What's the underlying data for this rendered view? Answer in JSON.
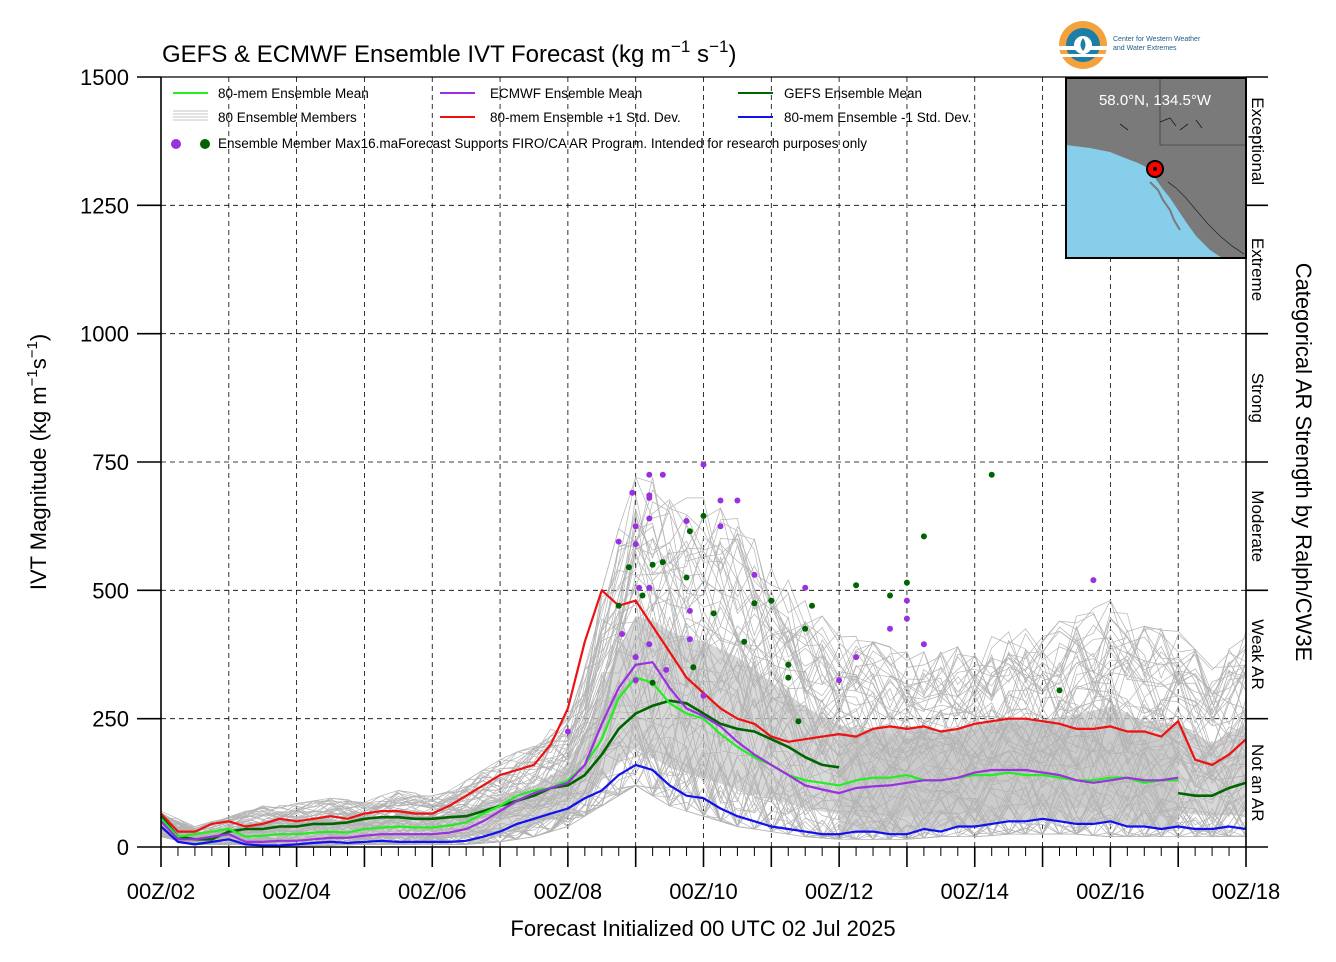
{
  "chart_data": {
    "type": "line",
    "title": "GEFS & ECMWF Ensemble IVT Forecast (kg m",
    "title_sup1": "−1",
    "title_mid": " s",
    "title_sup2": "−1",
    "title_end": ")",
    "xlabel": "Forecast Initialized 00 UTC 02 Jul 2025",
    "ylabel": "IVT Magnitude (kg m",
    "ylabel_sup1": "−1",
    "ylabel_mid": "s",
    "ylabel_sup2": "−1",
    "ylabel_end": ")",
    "right_axis_label": "Categorical AR Strength by Ralph/CW3E",
    "ylim": [
      0,
      1500
    ],
    "xlim_days": [
      2,
      18
    ],
    "y_ticks": [
      "0",
      "250",
      "500",
      "750",
      "1000",
      "1250",
      "1500"
    ],
    "y_tick_values": [
      0,
      250,
      500,
      750,
      1000,
      1250,
      1500
    ],
    "x_ticks": [
      "00Z/02",
      "00Z/04",
      "00Z/06",
      "00Z/08",
      "00Z/10",
      "00Z/12",
      "00Z/14",
      "00Z/16",
      "00Z/18"
    ],
    "x_tick_values": [
      2,
      4,
      6,
      8,
      10,
      12,
      14,
      16,
      18
    ],
    "grid": true,
    "categories": [
      {
        "label": "Not an AR",
        "range": [
          0,
          250
        ]
      },
      {
        "label": "Weak AR",
        "range": [
          250,
          500
        ]
      },
      {
        "label": "Moderate",
        "range": [
          500,
          750
        ]
      },
      {
        "label": "Strong",
        "range": [
          750,
          1000
        ]
      },
      {
        "label": "Extreme",
        "range": [
          1000,
          1250
        ]
      },
      {
        "label": "Exceptional",
        "range": [
          1250,
          1500
        ]
      }
    ],
    "legend": {
      "placement": "top-left",
      "entries": [
        {
          "label": "80-mem Ensemble Mean",
          "color": "#22ee22"
        },
        {
          "label": "ECMWF Ensemble Mean",
          "color": "#9b30e0"
        },
        {
          "label": "GEFS Ensemble Mean",
          "color": "#006400"
        },
        {
          "label": "80 Ensemble Members",
          "color": "#b3b3b3"
        },
        {
          "label": "80-mem Ensemble +1 Std. Dev.",
          "color": "#ee1111"
        },
        {
          "label": "80-mem Ensemble -1 Std. Dev.",
          "color": "#1111ee"
        }
      ],
      "max_label": "Ensemble Member Max",
      "note": "16.maForecast Supports FIRO/CA AR Program. Intended for research purposes only"
    },
    "inset_location": "58.0°N, 134.5°W",
    "logo_text": [
      "Center for Western Weather",
      "and Water Extremes"
    ],
    "series": [
      {
        "name": "80-mem Ensemble +1 Std. Dev.",
        "color": "#ee1111",
        "x": [
          2.0,
          2.25,
          2.5,
          2.75,
          3.0,
          3.25,
          3.5,
          3.75,
          4.0,
          4.25,
          4.5,
          4.75,
          5.0,
          5.25,
          5.5,
          5.75,
          6.0,
          6.25,
          6.5,
          6.75,
          7.0,
          7.25,
          7.5,
          7.75,
          8.0,
          8.25,
          8.5,
          8.75,
          9.0,
          9.25,
          9.5,
          9.75,
          10.0,
          10.25,
          10.5,
          10.75,
          11.0,
          11.25,
          11.5,
          11.75,
          12.0,
          12.25,
          12.5,
          12.75,
          13.0,
          13.25,
          13.5,
          13.75,
          14.0,
          14.25,
          14.5,
          14.75,
          15.0,
          15.25,
          15.5,
          15.75,
          16.0,
          16.25,
          16.5,
          16.75,
          17.0,
          17.25,
          17.5,
          17.75,
          18.0
        ],
        "values": [
          65,
          30,
          30,
          45,
          50,
          40,
          45,
          55,
          50,
          55,
          60,
          55,
          65,
          70,
          70,
          65,
          65,
          80,
          100,
          120,
          140,
          150,
          160,
          200,
          270,
          400,
          500,
          470,
          480,
          430,
          380,
          330,
          300,
          270,
          250,
          240,
          215,
          205,
          210,
          215,
          220,
          215,
          230,
          235,
          230,
          235,
          225,
          230,
          240,
          245,
          250,
          250,
          245,
          240,
          230,
          230,
          235,
          225,
          225,
          215,
          245,
          170,
          160,
          180,
          210
        ]
      },
      {
        "name": "GEFS Ensemble Mean",
        "color": "#006400",
        "x": [
          2.0,
          2.25,
          2.5,
          2.75,
          3.0,
          3.25,
          3.5,
          3.75,
          4.0,
          4.25,
          4.5,
          4.75,
          5.0,
          5.25,
          5.5,
          5.75,
          6.0,
          6.25,
          6.5,
          6.75,
          7.0,
          7.25,
          7.5,
          7.75,
          8.0,
          8.25,
          8.5,
          8.75,
          9.0,
          9.25,
          9.5,
          9.75,
          10.0,
          10.25,
          10.5,
          10.75,
          11.0,
          11.25,
          11.5,
          11.75,
          12.0
        ],
        "values": [
          60,
          20,
          15,
          15,
          30,
          35,
          35,
          40,
          40,
          45,
          45,
          48,
          55,
          58,
          58,
          55,
          55,
          58,
          60,
          70,
          80,
          90,
          100,
          115,
          120,
          140,
          180,
          230,
          260,
          275,
          285,
          280,
          260,
          240,
          230,
          225,
          210,
          195,
          175,
          160,
          155
        ]
      },
      {
        "name": "GEFS Ensemble Mean (late)",
        "color": "#006400",
        "x": [
          17.0,
          17.25,
          17.5,
          17.75,
          18.0
        ],
        "values": [
          105,
          100,
          100,
          115,
          125
        ]
      },
      {
        "name": "80-mem Ensemble Mean",
        "color": "#22ee22",
        "x": [
          2.0,
          2.25,
          2.5,
          2.75,
          3.0,
          3.25,
          3.5,
          3.75,
          4.0,
          4.25,
          4.5,
          4.75,
          5.0,
          5.25,
          5.5,
          5.75,
          6.0,
          6.25,
          6.5,
          6.75,
          7.0,
          7.25,
          7.5,
          7.75,
          8.0,
          8.25,
          8.5,
          8.75,
          9.0,
          9.25,
          9.5,
          9.75,
          10.0,
          10.25,
          10.5,
          10.75,
          11.0,
          11.25,
          11.5,
          11.75,
          12.0,
          12.25,
          12.5,
          12.75,
          13.0,
          13.25,
          13.5,
          13.75,
          14.0,
          14.25,
          14.5,
          14.75,
          15.0,
          15.25,
          15.5,
          15.75,
          16.0,
          16.25,
          16.5,
          16.75,
          17.0
        ],
        "values": [
          55,
          20,
          25,
          30,
          35,
          20,
          22,
          25,
          25,
          28,
          30,
          28,
          35,
          38,
          40,
          38,
          38,
          42,
          48,
          65,
          80,
          100,
          110,
          115,
          130,
          160,
          210,
          290,
          330,
          320,
          280,
          260,
          250,
          220,
          195,
          175,
          160,
          140,
          130,
          125,
          120,
          130,
          135,
          135,
          140,
          130,
          130,
          135,
          140,
          140,
          145,
          140,
          140,
          135,
          130,
          130,
          135,
          135,
          125,
          130,
          130
        ]
      },
      {
        "name": "ECMWF Ensemble Mean",
        "color": "#9b30e0",
        "x": [
          2.0,
          2.25,
          2.5,
          2.75,
          3.0,
          3.25,
          3.5,
          3.75,
          4.0,
          4.25,
          4.5,
          4.75,
          5.0,
          5.25,
          5.5,
          5.75,
          6.0,
          6.25,
          6.5,
          6.75,
          7.0,
          7.25,
          7.5,
          7.75,
          8.0,
          8.25,
          8.5,
          8.75,
          9.0,
          9.25,
          9.5,
          9.75,
          10.0,
          10.25,
          10.5,
          10.75,
          11.0,
          11.25,
          11.5,
          11.75,
          12.0,
          12.25,
          12.5,
          12.75,
          13.0,
          13.25,
          13.5,
          13.75,
          14.0,
          14.25,
          14.5,
          14.75,
          15.0,
          15.25,
          15.5,
          15.75,
          16.0,
          16.25,
          16.5,
          16.75,
          17.0
        ],
        "values": [
          50,
          15,
          15,
          20,
          25,
          10,
          10,
          12,
          12,
          15,
          18,
          18,
          22,
          25,
          25,
          25,
          25,
          28,
          35,
          50,
          70,
          90,
          105,
          115,
          125,
          160,
          240,
          310,
          355,
          360,
          310,
          270,
          255,
          235,
          205,
          180,
          160,
          140,
          120,
          112,
          105,
          115,
          118,
          120,
          125,
          130,
          130,
          135,
          145,
          150,
          150,
          150,
          145,
          140,
          130,
          125,
          130,
          135,
          130,
          130,
          135
        ]
      },
      {
        "name": "80-mem Ensemble -1 Std. Dev.",
        "color": "#1111ee",
        "x": [
          2.0,
          2.25,
          2.5,
          2.75,
          3.0,
          3.25,
          3.5,
          3.75,
          4.0,
          4.25,
          4.5,
          4.75,
          5.0,
          5.25,
          5.5,
          5.75,
          6.0,
          6.25,
          6.5,
          6.75,
          7.0,
          7.25,
          7.5,
          7.75,
          8.0,
          8.25,
          8.5,
          8.75,
          9.0,
          9.25,
          9.5,
          9.75,
          10.0,
          10.25,
          10.5,
          10.75,
          11.0,
          11.25,
          11.5,
          11.75,
          12.0,
          12.25,
          12.5,
          12.75,
          13.0,
          13.25,
          13.5,
          13.75,
          14.0,
          14.25,
          14.5,
          14.75,
          15.0,
          15.25,
          15.5,
          15.75,
          16.0,
          16.25,
          16.5,
          16.75,
          17.0,
          17.25,
          17.5,
          17.75,
          18.0
        ],
        "values": [
          40,
          10,
          5,
          10,
          15,
          5,
          3,
          3,
          5,
          8,
          10,
          8,
          10,
          12,
          10,
          10,
          10,
          10,
          12,
          20,
          30,
          45,
          55,
          65,
          75,
          95,
          110,
          140,
          160,
          150,
          120,
          100,
          95,
          75,
          60,
          50,
          40,
          35,
          30,
          25,
          25,
          30,
          30,
          25,
          25,
          35,
          30,
          40,
          40,
          45,
          50,
          50,
          55,
          50,
          45,
          45,
          50,
          40,
          40,
          35,
          40,
          35,
          35,
          40,
          35
        ]
      }
    ],
    "member_spread": {
      "x": [
        2.0,
        2.5,
        3.0,
        3.5,
        4.0,
        4.5,
        5.0,
        5.5,
        6.0,
        6.5,
        7.0,
        7.5,
        8.0,
        8.25,
        8.5,
        8.75,
        9.0,
        9.25,
        9.5,
        9.75,
        10.0,
        10.5,
        11.0,
        11.5,
        12.0,
        12.5,
        13.0,
        13.5,
        14.0,
        14.5,
        15.0,
        15.5,
        16.0,
        16.5,
        17.0,
        17.5,
        18.0
      ],
      "upper": [
        70,
        40,
        60,
        80,
        85,
        95,
        90,
        110,
        100,
        130,
        170,
        200,
        260,
        350,
        500,
        620,
        720,
        720,
        700,
        680,
        680,
        640,
        560,
        480,
        420,
        400,
        380,
        380,
        400,
        420,
        430,
        450,
        480,
        430,
        420,
        350,
        420
      ],
      "lower": [
        20,
        5,
        5,
        2,
        2,
        3,
        5,
        5,
        5,
        5,
        10,
        20,
        40,
        60,
        80,
        100,
        120,
        100,
        80,
        70,
        60,
        40,
        30,
        20,
        15,
        15,
        15,
        20,
        20,
        25,
        25,
        25,
        20,
        20,
        20,
        20,
        20
      ]
    },
    "shaded_band": {
      "x": [
        12.0,
        12.25,
        12.5,
        12.75,
        13.0,
        13.25,
        13.5,
        13.75,
        14.0,
        14.25,
        14.5,
        14.75,
        15.0,
        15.25,
        15.5,
        15.75,
        16.0,
        16.25,
        16.5,
        16.75,
        17.0
      ],
      "upper": [
        220,
        215,
        230,
        235,
        230,
        235,
        225,
        230,
        240,
        245,
        250,
        250,
        245,
        240,
        230,
        230,
        235,
        225,
        225,
        215,
        245
      ],
      "lower": [
        25,
        30,
        30,
        25,
        25,
        35,
        30,
        40,
        40,
        45,
        50,
        50,
        55,
        50,
        45,
        45,
        50,
        40,
        40,
        35,
        40
      ]
    },
    "max_points_ecmwf": {
      "color": "#9b30e0",
      "x": [
        8.0,
        8.75,
        8.8,
        8.95,
        9.0,
        9.0,
        9.0,
        9.0,
        9.05,
        9.2,
        9.2,
        9.2,
        9.2,
        9.2,
        9.2,
        9.4,
        9.45,
        9.75,
        9.8,
        9.8,
        10.0,
        10.0,
        10.25,
        10.25,
        10.5,
        10.75,
        11.5,
        12.0,
        12.25,
        12.75,
        13.0,
        13.0,
        13.25,
        15.75
      ],
      "values": [
        225,
        595,
        415,
        690,
        625,
        590,
        370,
        325,
        505,
        725,
        685,
        680,
        640,
        395,
        505,
        725,
        345,
        635,
        460,
        405,
        745,
        295,
        675,
        625,
        675,
        530,
        505,
        325,
        370,
        425,
        480,
        445,
        395,
        520
      ]
    },
    "max_points_gefs": {
      "color": "#006400",
      "x": [
        8.75,
        8.9,
        9.1,
        9.25,
        9.25,
        9.4,
        9.75,
        9.8,
        9.85,
        10.0,
        10.15,
        10.6,
        10.75,
        11.0,
        11.25,
        11.25,
        11.4,
        11.5,
        11.6,
        12.25,
        12.75,
        13.0,
        13.25,
        14.25,
        15.25
      ],
      "values": [
        470,
        545,
        490,
        550,
        320,
        555,
        525,
        615,
        350,
        645,
        455,
        400,
        475,
        480,
        355,
        330,
        245,
        425,
        470,
        510,
        490,
        515,
        605,
        725,
        305
      ]
    },
    "members_count": 80
  }
}
